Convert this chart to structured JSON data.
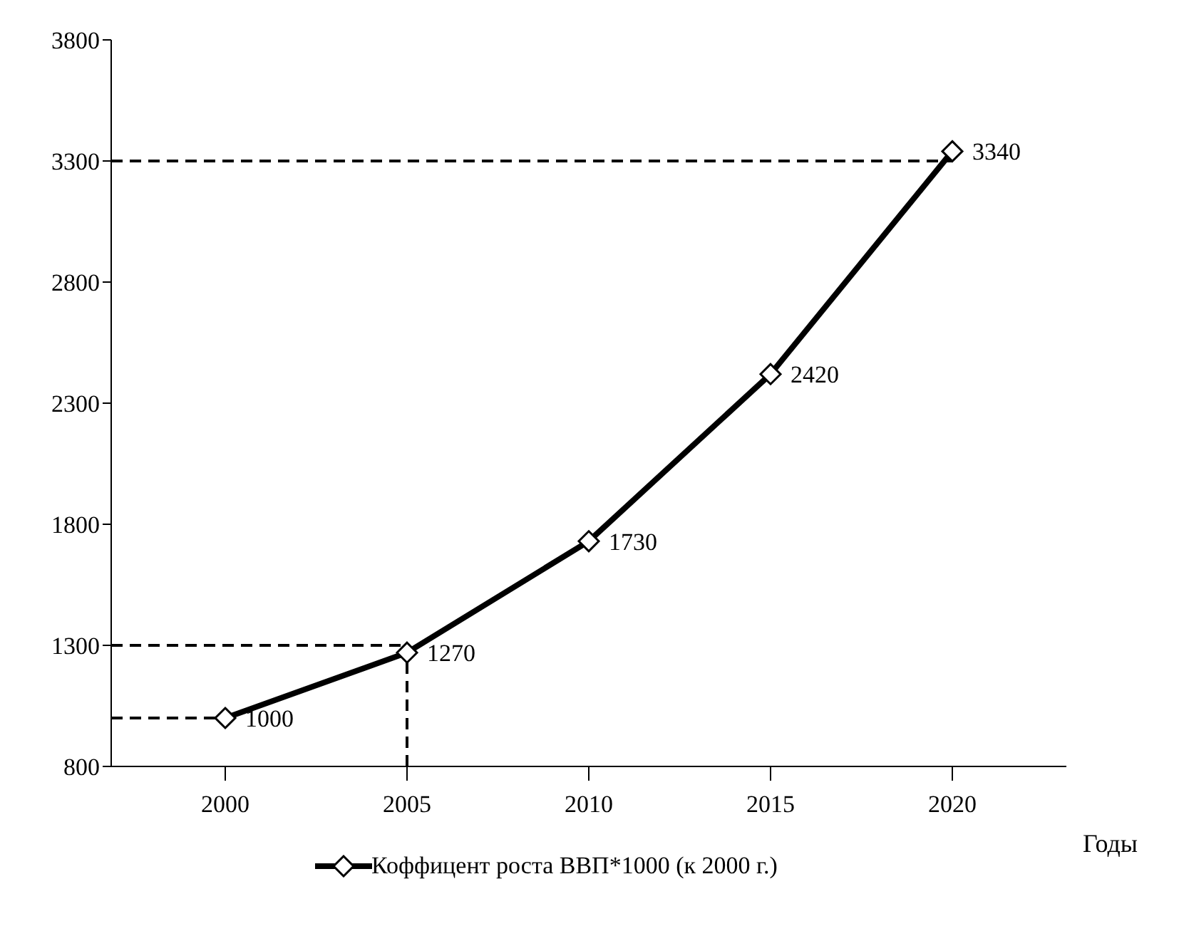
{
  "chart_data": {
    "type": "line",
    "xlabel": "Годы",
    "categories": [
      "2000",
      "2005",
      "2010",
      "2015",
      "2020"
    ],
    "series": [
      {
        "name": "Коффицент роста ВВП*1000 (к 2000 г.)",
        "color": "#000000",
        "values": [
          1000,
          1270,
          1730,
          2420,
          3340
        ]
      }
    ],
    "ylim": [
      800,
      3800
    ],
    "yticks": [
      800,
      1300,
      1800,
      2300,
      2800,
      3300,
      3800
    ],
    "ref_lines": [
      {
        "axis": "y",
        "value": 3300,
        "line_style": "dashed"
      },
      {
        "axis": "y",
        "value": 1300,
        "line_style": "dashed"
      },
      {
        "axis": "y",
        "value": 1000,
        "line_style": "dashed"
      },
      {
        "axis": "x",
        "value": "2005",
        "line_style": "dashed"
      }
    ],
    "data_labels": true,
    "marker": "diamond",
    "line_style": "solid",
    "grid": false,
    "legend": "bottom"
  }
}
